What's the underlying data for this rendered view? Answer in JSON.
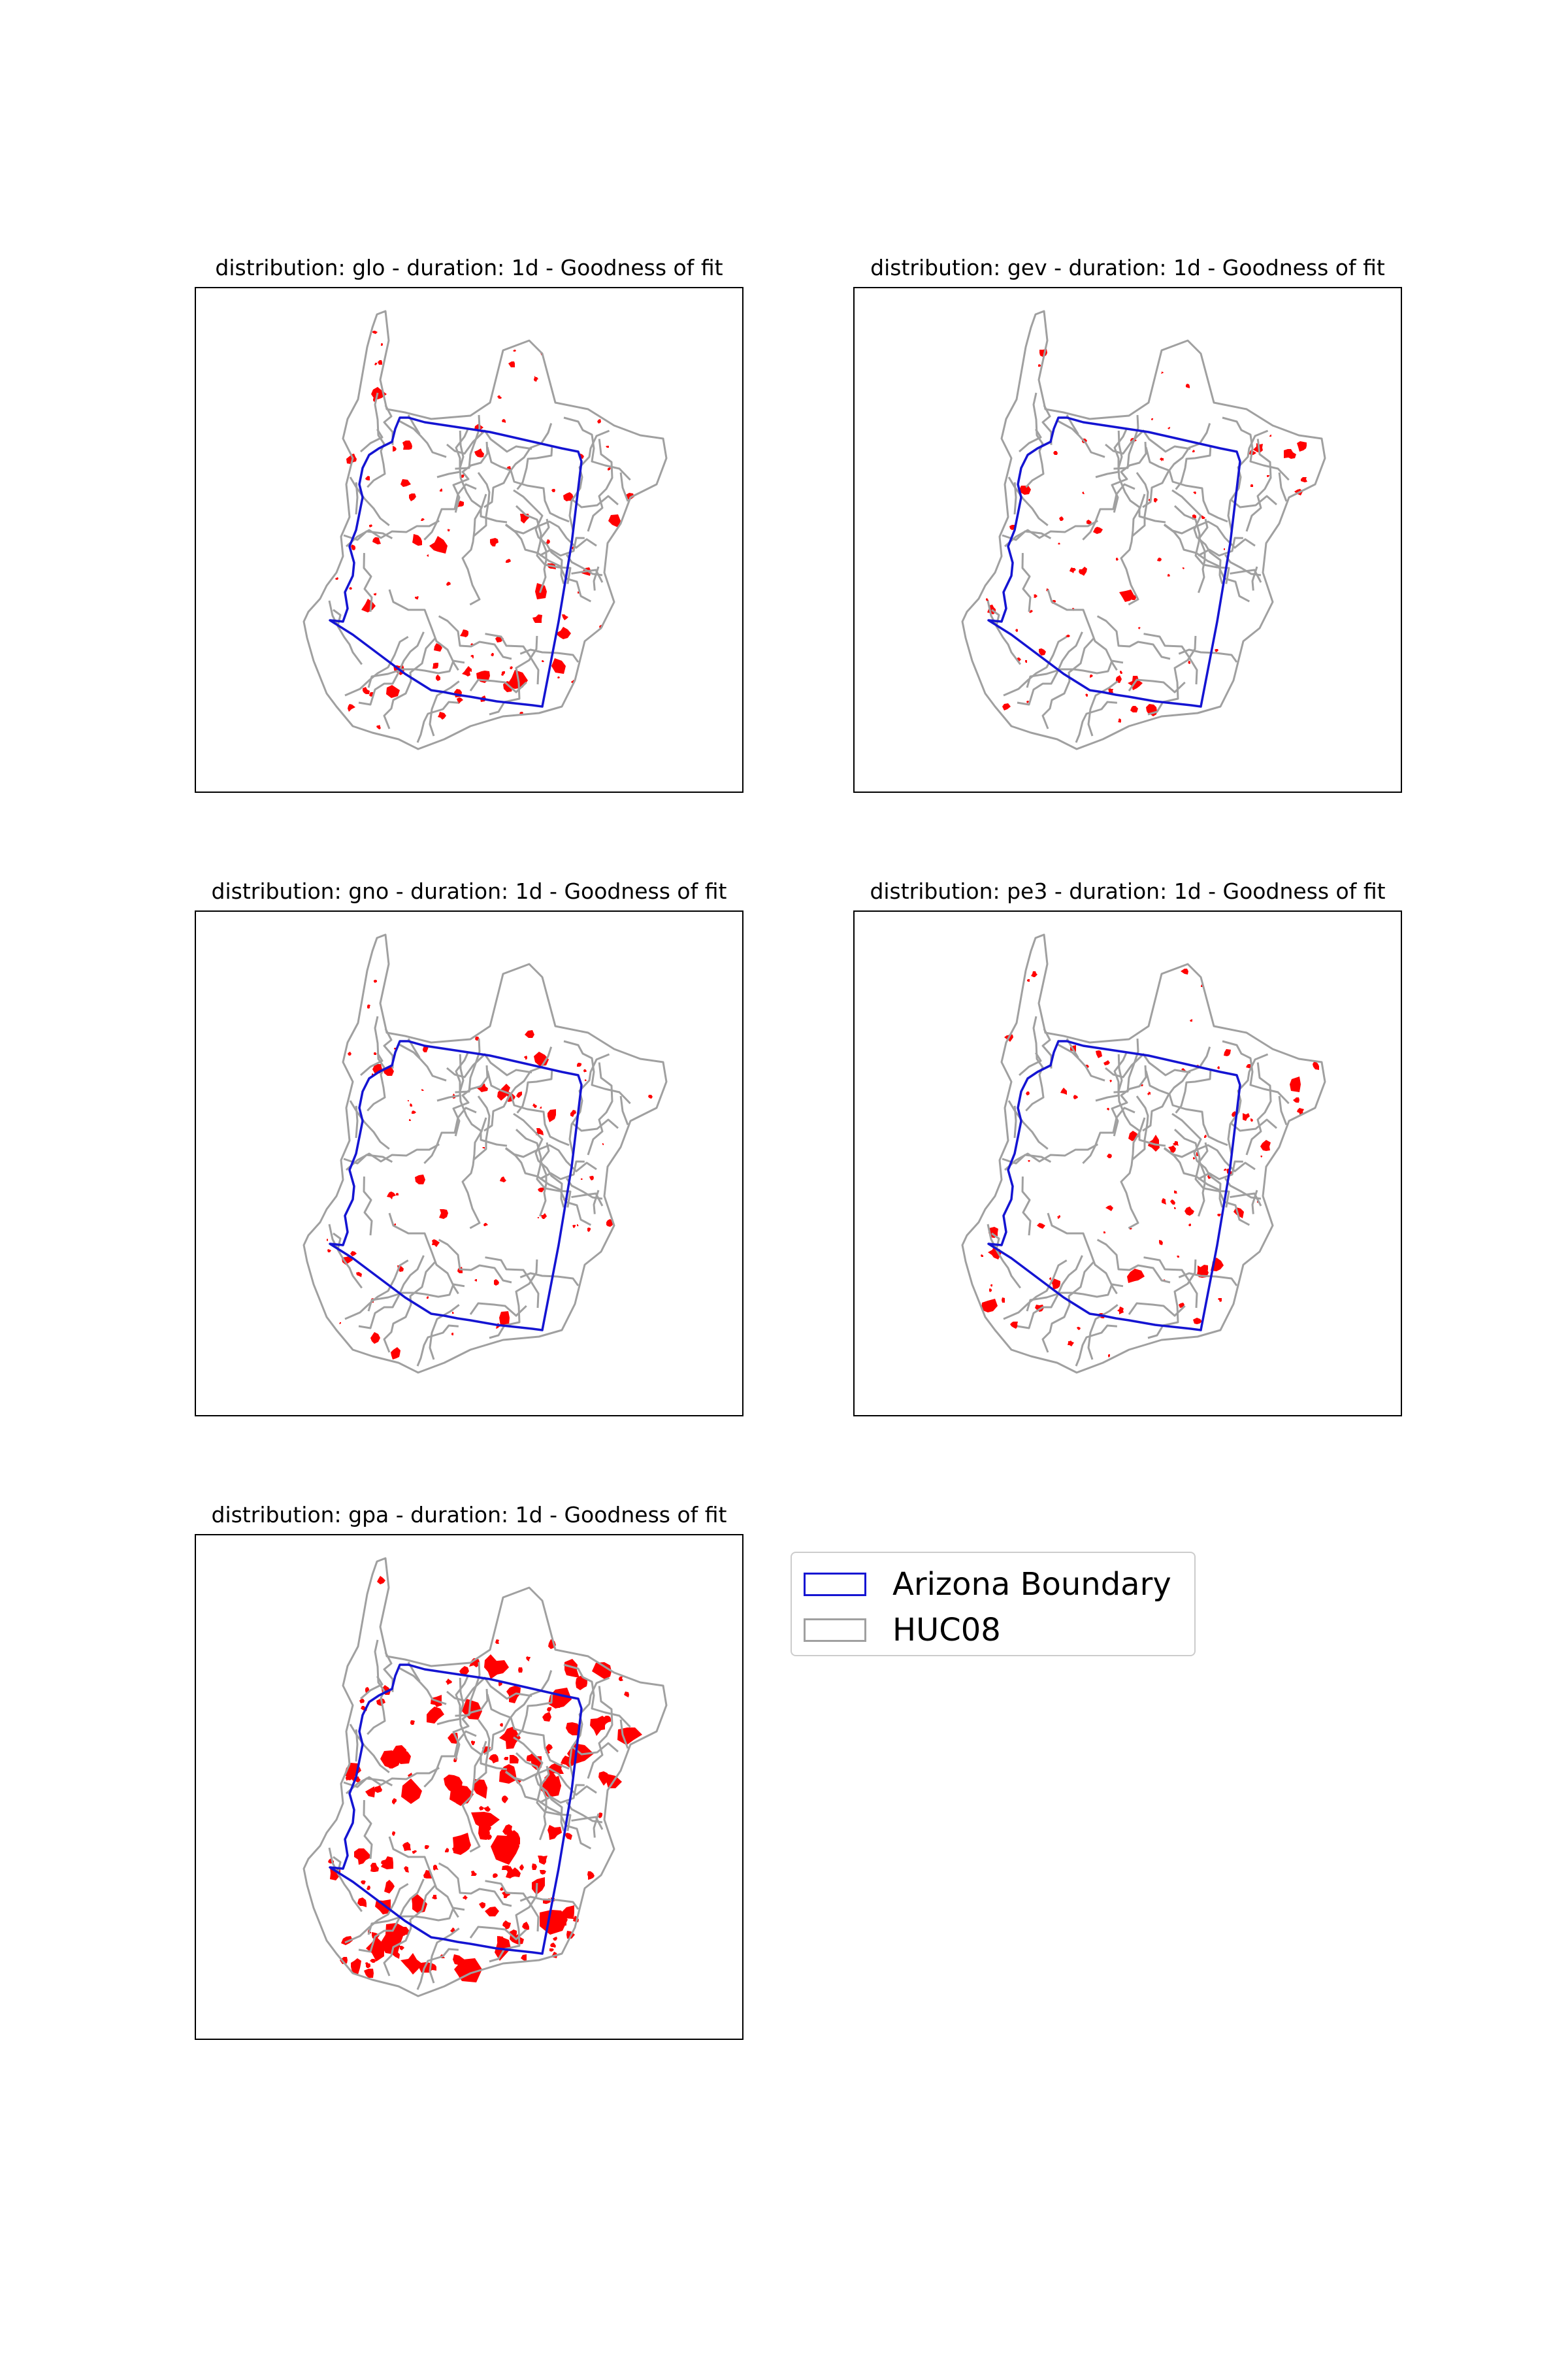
{
  "colors": {
    "boundary": "#1414d2",
    "huc08": "#a0a0a0",
    "grid_cells": "#ff0000"
  },
  "panels": [
    {
      "title": "distribution: glo - duration: 1d - Goodness of fit",
      "seed": 11,
      "patch_count": 90,
      "patch_scale": 1.0
    },
    {
      "title": "distribution: gev - duration: 1d - Goodness of fit",
      "seed": 23,
      "patch_count": 70,
      "patch_scale": 0.75
    },
    {
      "title": "distribution: gno - duration: 1d - Goodness of fit",
      "seed": 37,
      "patch_count": 70,
      "patch_scale": 0.75
    },
    {
      "title": "distribution: pe3 - duration: 1d - Goodness of fit",
      "seed": 51,
      "patch_count": 85,
      "patch_scale": 0.9
    },
    {
      "title": "distribution: gpa - duration: 1d - Goodness of fit",
      "seed": 67,
      "patch_count": 170,
      "patch_scale": 1.6
    }
  ],
  "legend": {
    "items": [
      {
        "label": "Arizona Boundary",
        "icon": "blue-outline-swatch"
      },
      {
        "label": "HUC08",
        "icon": "gray-outline-swatch"
      }
    ]
  }
}
